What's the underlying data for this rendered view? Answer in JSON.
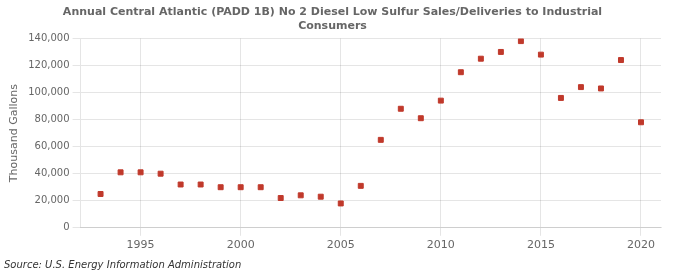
{
  "chart_data": {
    "type": "scatter",
    "title": [
      "Annual Central Atlantic (PADD 1B) No 2 Diesel Low Sulfur Sales/Deliveries to Industrial",
      "Consumers"
    ],
    "ylabel": "Thousand Gallons",
    "annotation": "Source: U.S. Energy Information Administration",
    "x": [
      1993,
      1994,
      1995,
      1996,
      1997,
      1998,
      1999,
      2000,
      2001,
      2002,
      2003,
      2004,
      2005,
      2006,
      2007,
      2008,
      2009,
      2010,
      2011,
      2012,
      2013,
      2014,
      2015,
      2016,
      2017,
      2018,
      2019,
      2020
    ],
    "values": [
      25000,
      41000,
      41000,
      40000,
      32000,
      32000,
      30000,
      30000,
      30000,
      22000,
      24000,
      23000,
      18000,
      31000,
      65000,
      88000,
      81000,
      94000,
      115000,
      125000,
      130000,
      138000,
      128000,
      96000,
      104000,
      103000,
      124000,
      78000
    ],
    "color": "#c0392b",
    "marker": "square",
    "xlim": [
      1992,
      2021
    ],
    "xticks": [
      1995,
      2000,
      2005,
      2010,
      2015,
      2020
    ],
    "ylim": [
      0,
      140000
    ],
    "yticks": [
      0,
      {
        "value": 20000,
        "label": "20,000"
      },
      {
        "value": 40000,
        "label": "40,000"
      },
      {
        "value": 60000,
        "label": "60,000"
      },
      {
        "value": 80000,
        "label": "80,000"
      },
      {
        "value": 100000,
        "label": "100,000"
      },
      {
        "value": 120000,
        "label": "120,000"
      },
      {
        "value": 140000,
        "label": "140,000"
      }
    ],
    "grid": true
  }
}
